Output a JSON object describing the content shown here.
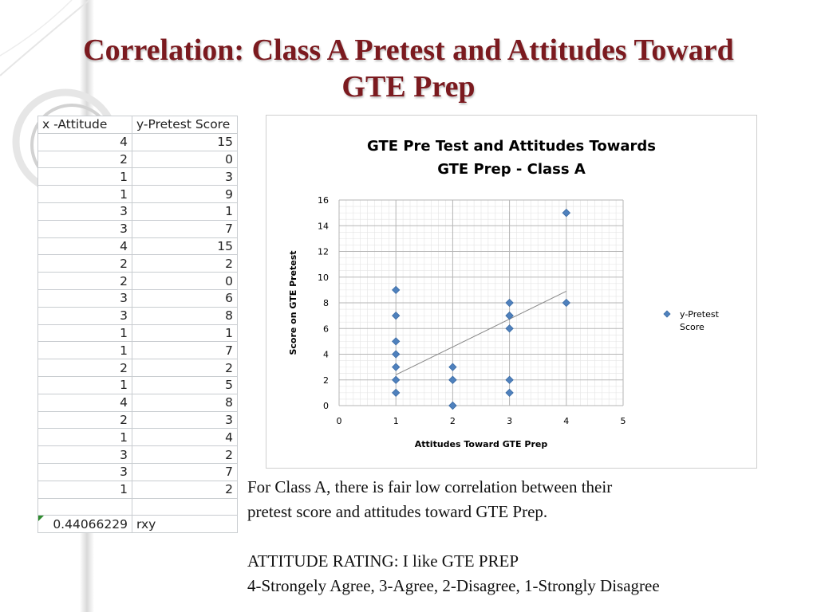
{
  "slide": {
    "title_line1": "Correlation: Class A Pretest and Attitudes Toward",
    "title_line2": "GTE Prep"
  },
  "table": {
    "headers": [
      "x -Attitude",
      "y-Pretest Score"
    ],
    "rows": [
      [
        4,
        15
      ],
      [
        2,
        0
      ],
      [
        1,
        3
      ],
      [
        1,
        9
      ],
      [
        3,
        1
      ],
      [
        3,
        7
      ],
      [
        4,
        15
      ],
      [
        2,
        2
      ],
      [
        2,
        0
      ],
      [
        3,
        6
      ],
      [
        3,
        8
      ],
      [
        1,
        1
      ],
      [
        1,
        7
      ],
      [
        2,
        2
      ],
      [
        1,
        5
      ],
      [
        4,
        8
      ],
      [
        2,
        3
      ],
      [
        1,
        4
      ],
      [
        3,
        2
      ],
      [
        3,
        7
      ],
      [
        1,
        2
      ]
    ],
    "result_value": "0.44066229",
    "result_label": "rxy"
  },
  "chart_data": {
    "type": "scatter",
    "title_line1": "GTE Pre Test and Attitudes Towards",
    "title_line2": "GTE Prep - Class A",
    "xlabel": "Attitudes Toward GTE Prep",
    "ylabel": "Score on GTE Pretest",
    "xlim": [
      0,
      5
    ],
    "ylim": [
      0,
      16
    ],
    "x_ticks": [
      0,
      1,
      2,
      3,
      4,
      5
    ],
    "y_ticks": [
      0,
      2,
      4,
      6,
      8,
      10,
      12,
      14,
      16
    ],
    "grid": true,
    "legend_position": "right",
    "series": [
      {
        "name": "y-Pretest Score",
        "color": "#4f81bd",
        "marker": "diamond",
        "x": [
          4,
          2,
          1,
          1,
          3,
          3,
          4,
          2,
          2,
          3,
          3,
          1,
          1,
          2,
          1,
          4,
          2,
          1,
          3,
          3,
          1
        ],
        "y": [
          15,
          0,
          3,
          9,
          1,
          7,
          15,
          2,
          0,
          6,
          8,
          1,
          7,
          2,
          5,
          8,
          3,
          4,
          2,
          7,
          2
        ]
      }
    ],
    "trendline": {
      "type": "linear",
      "x": [
        1,
        4
      ],
      "y": [
        2.4,
        8.9
      ],
      "color": "#888888"
    }
  },
  "caption": {
    "line1": "For Class A, there is fair low correlation between their",
    "line2": "pretest score and attitudes toward GTE Prep.",
    "line3": "ATTITUDE RATING: I like GTE PREP",
    "line4": "4-Strongely Agree, 3-Agree, 2-Disagree, 1-Strongly Disagree"
  }
}
